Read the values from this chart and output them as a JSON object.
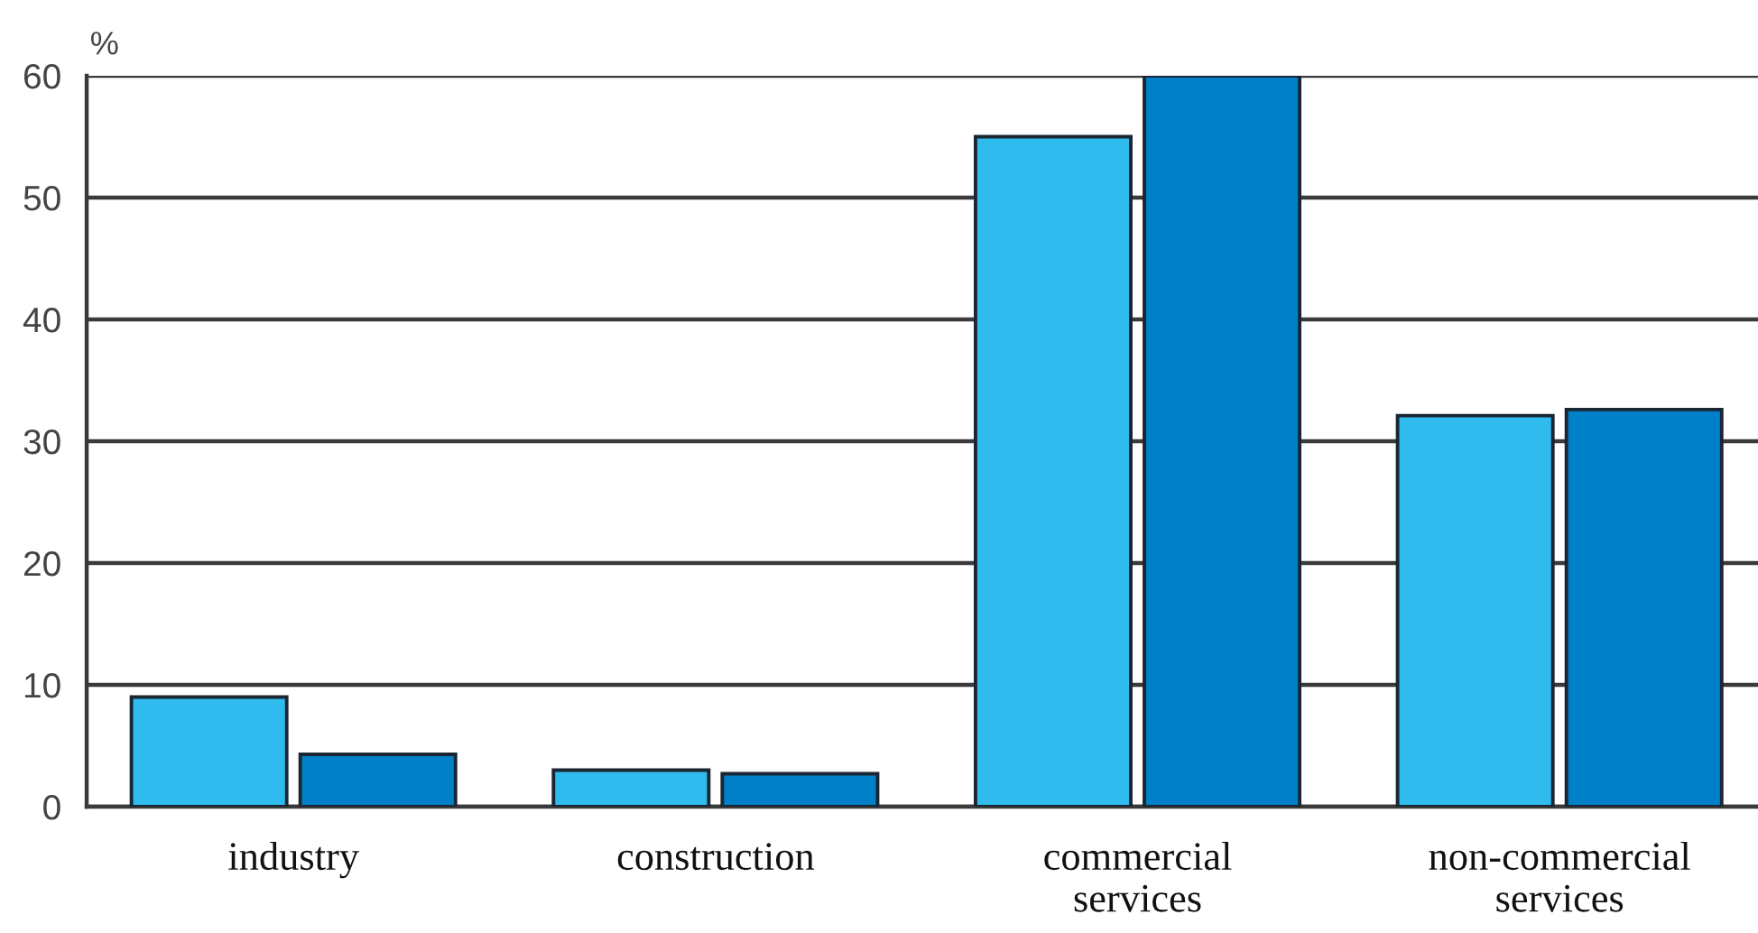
{
  "chart_data": {
    "type": "bar",
    "ylabel": "%",
    "categories": [
      "industry",
      "construction",
      "commercial\nservices",
      "non-commercial\nservices"
    ],
    "series": [
      {
        "color": "#2fbbee",
        "values": [
          9,
          3,
          55,
          32.1
        ]
      },
      {
        "color": "#0080c8",
        "values": [
          4.3,
          2.7,
          60,
          32.6
        ]
      }
    ],
    "ylim": [
      0,
      60
    ],
    "yticks": [
      0,
      10,
      20,
      30,
      40,
      50,
      60
    ],
    "grid": "y"
  }
}
